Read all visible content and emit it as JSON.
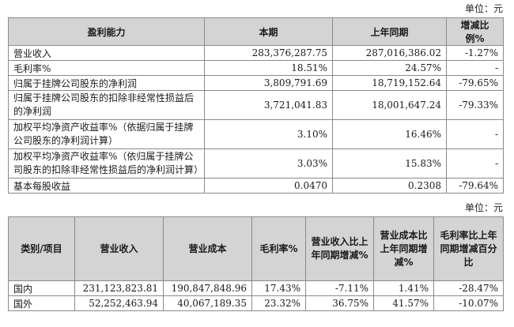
{
  "unit_label": "单位：元",
  "table1": {
    "headers": [
      "盈利能力",
      "本期",
      "上年同期",
      "增减比例%"
    ],
    "rows": [
      [
        "营业收入",
        "283,376,287.75",
        "287,016,386.02",
        "-1.27%"
      ],
      [
        "毛利率%",
        "18.51%",
        "24.57%",
        "-"
      ],
      [
        "归属于挂牌公司股东的净利润",
        "3,809,791.69",
        "18,719,152.64",
        "-79.65%"
      ],
      [
        "归属于挂牌公司股东的扣除非经常性损益后的净利润",
        "3,721,041.83",
        "18,001,647.24",
        "-79.33%"
      ],
      [
        "加权平均净资产收益率%（依据归属于挂牌公司股东的净利润计算）",
        "3.10%",
        "16.46%",
        "-"
      ],
      [
        "加权平均净资产收益率%（依归属于挂牌公司股东的扣除非经常性损益后的净利润计算）",
        "3.03%",
        "15.83%",
        "-"
      ],
      [
        "基本每股收益",
        "0.0470",
        "0.2308",
        "-79.64%"
      ]
    ]
  },
  "table2": {
    "headers": [
      "类别/项目",
      "营业收入",
      "营业成本",
      "毛利率%",
      "营业收入比上年同期增减%",
      "营业成本比上年同期增减%",
      "毛利率比上年同期增减百分比"
    ],
    "rows": [
      [
        "国内",
        "231,123,823.81",
        "190,847,848.96",
        "17.43%",
        "-7.11%",
        "1.41%",
        "-28.47%"
      ],
      [
        "国外",
        "52,252,463.94",
        "40,067,189.35",
        "23.32%",
        "36.75%",
        "41.57%",
        "-10.07%"
      ]
    ]
  }
}
